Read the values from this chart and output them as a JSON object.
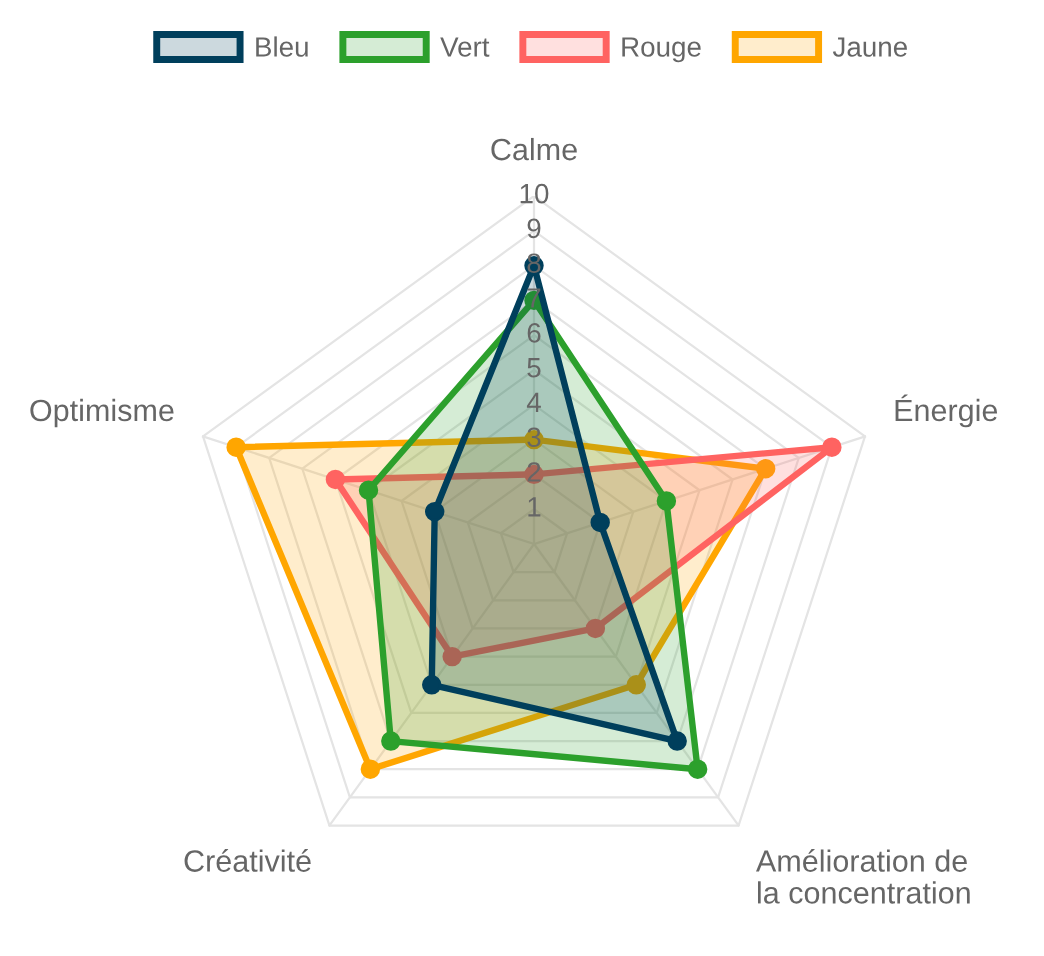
{
  "chart_data": {
    "type": "radar",
    "categories": [
      "Calme",
      "Énergie",
      "Amélioration de\nla concentration",
      "Créativité",
      "Optimisme"
    ],
    "series": [
      {
        "name": "Bleu",
        "color": "#003f5c",
        "values": [
          8,
          2,
          7,
          5,
          3
        ]
      },
      {
        "name": "Vert",
        "color": "#2ca02c",
        "values": [
          7,
          4,
          8,
          7,
          5
        ]
      },
      {
        "name": "Rouge",
        "color": "#ff6361",
        "values": [
          2,
          9,
          3,
          4,
          6
        ]
      },
      {
        "name": "Jaune",
        "color": "#ffa600",
        "values": [
          3,
          7,
          5,
          8,
          9
        ]
      }
    ],
    "ylim": [
      0,
      10
    ],
    "yticks": [
      1,
      2,
      3,
      4,
      5,
      6,
      7,
      8,
      9,
      10
    ],
    "grid": true,
    "legend": "top",
    "marker": "circle",
    "line_style": "solid"
  }
}
